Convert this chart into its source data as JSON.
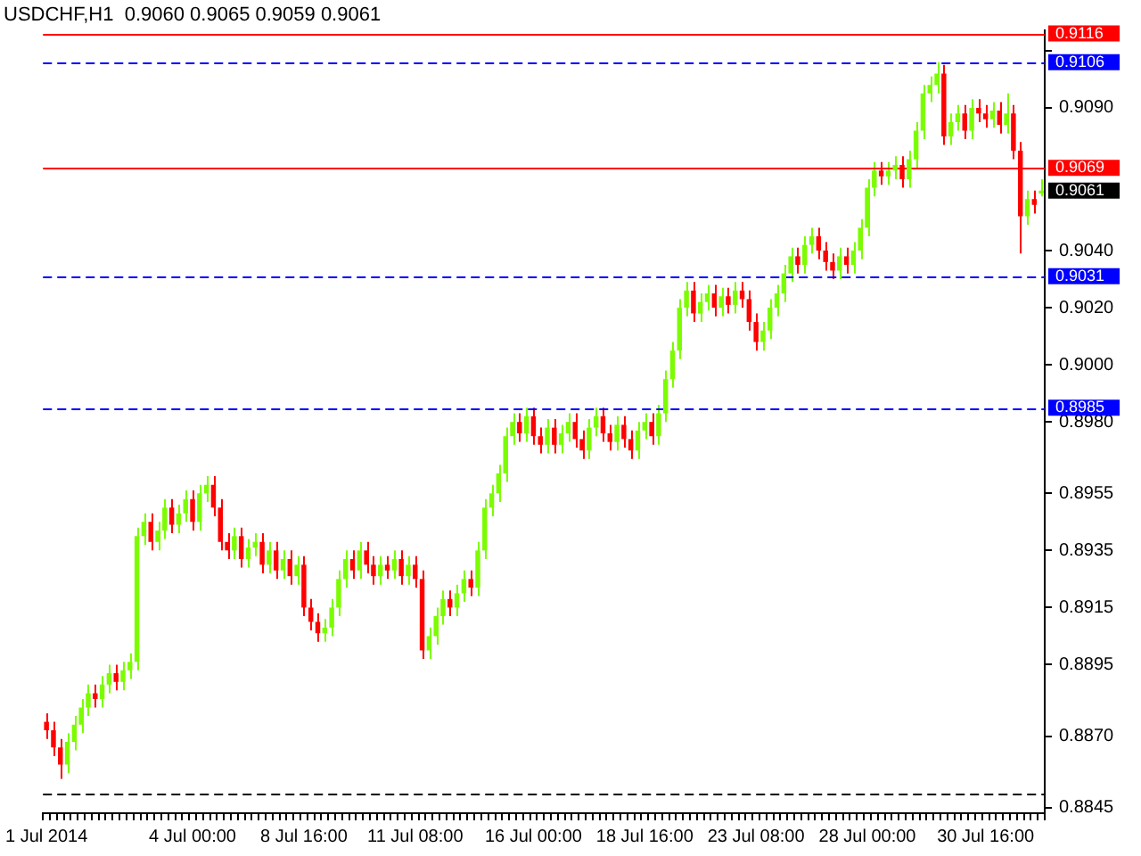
{
  "chart_data": {
    "type": "candlestick",
    "title": "USDCHF,H1  0.9060 0.9065 0.9059 0.9061",
    "categories": [
      "1 Jul 2014",
      null,
      null,
      null,
      null,
      null,
      null,
      null,
      null,
      null,
      null,
      null,
      null,
      null,
      null,
      null,
      null,
      null,
      null,
      null,
      null,
      "4 Jul 00:00",
      null,
      null,
      null,
      null,
      null,
      null,
      null,
      null,
      null,
      null,
      null,
      null,
      null,
      null,
      null,
      "8 Jul 16:00",
      null,
      null,
      null,
      null,
      null,
      null,
      null,
      null,
      null,
      null,
      null,
      null,
      null,
      null,
      null,
      "11 Jul 08:00",
      null,
      null,
      null,
      null,
      null,
      null,
      null,
      null,
      null,
      null,
      null,
      null,
      null,
      null,
      null,
      null,
      "16 Jul 00:00",
      null,
      null,
      null,
      null,
      null,
      null,
      null,
      null,
      null,
      null,
      null,
      null,
      null,
      null,
      null,
      "18 Jul 16:00",
      null,
      null,
      null,
      null,
      null,
      null,
      null,
      null,
      null,
      null,
      null,
      null,
      null,
      null,
      null,
      "23 Jul 08:00",
      null,
      null,
      null,
      null,
      null,
      null,
      null,
      null,
      null,
      null,
      null,
      null,
      null,
      null,
      null,
      "28 Jul 00:00",
      null,
      null,
      null,
      null,
      null,
      null,
      null,
      null,
      null,
      null,
      null,
      null,
      null,
      null,
      null,
      null,
      "30 Jul 16:00",
      null,
      null,
      null,
      null,
      null,
      null,
      null,
      null
    ],
    "ohlc": [
      [
        0.8875,
        0.8878,
        0.8869,
        0.8872
      ],
      [
        0.8872,
        0.8875,
        0.8863,
        0.8866
      ],
      [
        0.8866,
        0.8869,
        0.8855,
        0.886
      ],
      [
        0.886,
        0.8871,
        0.8857,
        0.8868
      ],
      [
        0.8868,
        0.8877,
        0.8865,
        0.8874
      ],
      [
        0.8874,
        0.8883,
        0.8871,
        0.888
      ],
      [
        0.888,
        0.8888,
        0.8877,
        0.8885
      ],
      [
        0.8885,
        0.8888,
        0.888,
        0.8883
      ],
      [
        0.8883,
        0.8891,
        0.888,
        0.8888
      ],
      [
        0.8888,
        0.8895,
        0.8885,
        0.8892
      ],
      [
        0.8892,
        0.8895,
        0.8886,
        0.8889
      ],
      [
        0.8889,
        0.8896,
        0.8886,
        0.8893
      ],
      [
        0.8893,
        0.8899,
        0.889,
        0.8896
      ],
      [
        0.8896,
        0.8943,
        0.8893,
        0.894
      ],
      [
        0.894,
        0.8948,
        0.8937,
        0.8945
      ],
      [
        0.8945,
        0.8948,
        0.8935,
        0.8938
      ],
      [
        0.8938,
        0.8945,
        0.8935,
        0.8942
      ],
      [
        0.8942,
        0.8953,
        0.8939,
        0.895
      ],
      [
        0.895,
        0.8953,
        0.8941,
        0.8944
      ],
      [
        0.8944,
        0.8951,
        0.8941,
        0.8948
      ],
      [
        0.8948,
        0.8956,
        0.8945,
        0.8953
      ],
      [
        0.8953,
        0.8956,
        0.8942,
        0.8945
      ],
      [
        0.8945,
        0.8958,
        0.8942,
        0.8955
      ],
      [
        0.8955,
        0.8961,
        0.8952,
        0.8958
      ],
      [
        0.8958,
        0.8961,
        0.8947,
        0.895
      ],
      [
        0.895,
        0.8953,
        0.8935,
        0.8938
      ],
      [
        0.8938,
        0.8941,
        0.8932,
        0.8935
      ],
      [
        0.8935,
        0.8943,
        0.8932,
        0.894
      ],
      [
        0.894,
        0.8943,
        0.8929,
        0.8932
      ],
      [
        0.8932,
        0.8939,
        0.8929,
        0.8936
      ],
      [
        0.8936,
        0.8941,
        0.8933,
        0.8938
      ],
      [
        0.8938,
        0.8941,
        0.8927,
        0.893
      ],
      [
        0.893,
        0.8938,
        0.8927,
        0.8935
      ],
      [
        0.8935,
        0.8938,
        0.8925,
        0.8928
      ],
      [
        0.8928,
        0.8935,
        0.8925,
        0.8932
      ],
      [
        0.8932,
        0.8935,
        0.8923,
        0.8926
      ],
      [
        0.8926,
        0.8933,
        0.8923,
        0.893
      ],
      [
        0.893,
        0.8933,
        0.8912,
        0.8915
      ],
      [
        0.8915,
        0.8918,
        0.8907,
        0.891
      ],
      [
        0.891,
        0.8913,
        0.8903,
        0.8906
      ],
      [
        0.8906,
        0.8911,
        0.8903,
        0.8908
      ],
      [
        0.8908,
        0.8918,
        0.8905,
        0.8915
      ],
      [
        0.8915,
        0.8928,
        0.8912,
        0.8925
      ],
      [
        0.8925,
        0.8935,
        0.8922,
        0.8932
      ],
      [
        0.8932,
        0.8935,
        0.8925,
        0.8928
      ],
      [
        0.8928,
        0.8938,
        0.8925,
        0.8935
      ],
      [
        0.8935,
        0.8938,
        0.8927,
        0.893
      ],
      [
        0.893,
        0.8933,
        0.8923,
        0.8926
      ],
      [
        0.8926,
        0.8933,
        0.8923,
        0.893
      ],
      [
        0.893,
        0.8933,
        0.8925,
        0.8928
      ],
      [
        0.8928,
        0.8935,
        0.8925,
        0.8932
      ],
      [
        0.8932,
        0.8935,
        0.8923,
        0.8926
      ],
      [
        0.8926,
        0.8933,
        0.8923,
        0.893
      ],
      [
        0.893,
        0.8933,
        0.8922,
        0.8925
      ],
      [
        0.8925,
        0.8928,
        0.8897,
        0.89
      ],
      [
        0.89,
        0.8908,
        0.8897,
        0.8905
      ],
      [
        0.8905,
        0.8915,
        0.8902,
        0.8912
      ],
      [
        0.8912,
        0.8921,
        0.8909,
        0.8918
      ],
      [
        0.8918,
        0.8921,
        0.8912,
        0.8915
      ],
      [
        0.8915,
        0.8923,
        0.8912,
        0.892
      ],
      [
        0.892,
        0.8928,
        0.8917,
        0.8925
      ],
      [
        0.8925,
        0.8928,
        0.8919,
        0.8922
      ],
      [
        0.8922,
        0.8938,
        0.8919,
        0.8935
      ],
      [
        0.8935,
        0.8953,
        0.8932,
        0.895
      ],
      [
        0.895,
        0.8958,
        0.8947,
        0.8955
      ],
      [
        0.8955,
        0.8965,
        0.8952,
        0.8962
      ],
      [
        0.8962,
        0.8978,
        0.8959,
        0.8975
      ],
      [
        0.8975,
        0.8983,
        0.8972,
        0.898
      ],
      [
        0.898,
        0.8983,
        0.8973,
        0.8976
      ],
      [
        0.8976,
        0.8985,
        0.8973,
        0.8982
      ],
      [
        0.8982,
        0.8985,
        0.8972,
        0.8975
      ],
      [
        0.8975,
        0.8978,
        0.8969,
        0.8972
      ],
      [
        0.8972,
        0.8981,
        0.8969,
        0.8978
      ],
      [
        0.8978,
        0.8981,
        0.8969,
        0.8972
      ],
      [
        0.8972,
        0.8979,
        0.8969,
        0.8976
      ],
      [
        0.8976,
        0.8983,
        0.8973,
        0.898
      ],
      [
        0.898,
        0.8983,
        0.8971,
        0.8974
      ],
      [
        0.8974,
        0.8977,
        0.8967,
        0.897
      ],
      [
        0.897,
        0.8981,
        0.8967,
        0.8978
      ],
      [
        0.8978,
        0.8985,
        0.8975,
        0.8982
      ],
      [
        0.8982,
        0.8985,
        0.8973,
        0.8976
      ],
      [
        0.8976,
        0.8979,
        0.897,
        0.8973
      ],
      [
        0.8973,
        0.8982,
        0.897,
        0.8979
      ],
      [
        0.8979,
        0.8982,
        0.8971,
        0.8974
      ],
      [
        0.8974,
        0.8977,
        0.8967,
        0.897
      ],
      [
        0.897,
        0.898,
        0.8967,
        0.8977
      ],
      [
        0.8977,
        0.8983,
        0.8974,
        0.898
      ],
      [
        0.898,
        0.8983,
        0.8972,
        0.8975
      ],
      [
        0.8975,
        0.8986,
        0.8972,
        0.8983
      ],
      [
        0.8983,
        0.8998,
        0.898,
        0.8995
      ],
      [
        0.8995,
        0.9008,
        0.8992,
        0.9005
      ],
      [
        0.9005,
        0.9023,
        0.9002,
        0.902
      ],
      [
        0.902,
        0.9029,
        0.9017,
        0.9026
      ],
      [
        0.9026,
        0.9029,
        0.9015,
        0.9018
      ],
      [
        0.9018,
        0.9025,
        0.9015,
        0.9022
      ],
      [
        0.9022,
        0.9028,
        0.9019,
        0.9025
      ],
      [
        0.9025,
        0.9028,
        0.9017,
        0.902
      ],
      [
        0.902,
        0.9027,
        0.9017,
        0.9024
      ],
      [
        0.9024,
        0.9027,
        0.9018,
        0.9021
      ],
      [
        0.9021,
        0.9029,
        0.9018,
        0.9026
      ],
      [
        0.9026,
        0.9029,
        0.902,
        0.9023
      ],
      [
        0.9023,
        0.9026,
        0.9012,
        0.9015
      ],
      [
        0.9015,
        0.9018,
        0.9005,
        0.9008
      ],
      [
        0.9008,
        0.9015,
        0.9005,
        0.9012
      ],
      [
        0.9012,
        0.9023,
        0.9009,
        0.902
      ],
      [
        0.902,
        0.9028,
        0.9017,
        0.9025
      ],
      [
        0.9025,
        0.9035,
        0.9022,
        0.9032
      ],
      [
        0.9032,
        0.9041,
        0.9029,
        0.9038
      ],
      [
        0.9038,
        0.9041,
        0.9032,
        0.9035
      ],
      [
        0.9035,
        0.9045,
        0.9032,
        0.9042
      ],
      [
        0.9042,
        0.9048,
        0.9039,
        0.9045
      ],
      [
        0.9045,
        0.9048,
        0.9037,
        0.904
      ],
      [
        0.904,
        0.9043,
        0.9033,
        0.9036
      ],
      [
        0.9036,
        0.9039,
        0.903,
        0.9033
      ],
      [
        0.9033,
        0.9041,
        0.903,
        0.9038
      ],
      [
        0.9038,
        0.9041,
        0.9032,
        0.9035
      ],
      [
        0.9035,
        0.9043,
        0.9032,
        0.904
      ],
      [
        0.904,
        0.9051,
        0.9037,
        0.9048
      ],
      [
        0.9048,
        0.9065,
        0.9045,
        0.9062
      ],
      [
        0.9062,
        0.9071,
        0.9059,
        0.9068
      ],
      [
        0.9068,
        0.9071,
        0.9063,
        0.9066
      ],
      [
        0.9066,
        0.9071,
        0.9063,
        0.9068
      ],
      [
        0.9068,
        0.9073,
        0.9065,
        0.907
      ],
      [
        0.907,
        0.9073,
        0.9062,
        0.9065
      ],
      [
        0.9065,
        0.9075,
        0.9062,
        0.9072
      ],
      [
        0.9072,
        0.9085,
        0.9069,
        0.9082
      ],
      [
        0.9082,
        0.9098,
        0.9079,
        0.9095
      ],
      [
        0.9095,
        0.9101,
        0.9092,
        0.9098
      ],
      [
        0.9098,
        0.9106,
        0.9095,
        0.9102
      ],
      [
        0.9102,
        0.9105,
        0.9077,
        0.908
      ],
      [
        0.908,
        0.9088,
        0.9077,
        0.9085
      ],
      [
        0.9085,
        0.9091,
        0.9082,
        0.9088
      ],
      [
        0.9088,
        0.9091,
        0.9079,
        0.9082
      ],
      [
        0.9082,
        0.9093,
        0.9079,
        0.909
      ],
      [
        0.909,
        0.9093,
        0.9085,
        0.9088
      ],
      [
        0.9088,
        0.9091,
        0.9083,
        0.9086
      ],
      [
        0.9086,
        0.9092,
        0.9083,
        0.9089
      ],
      [
        0.9089,
        0.9092,
        0.9081,
        0.9084
      ],
      [
        0.9084,
        0.9095,
        0.9081,
        0.9088
      ],
      [
        0.9088,
        0.9091,
        0.9072,
        0.9075
      ],
      [
        0.9075,
        0.9078,
        0.9039,
        0.9052
      ],
      [
        0.9052,
        0.9061,
        0.9049,
        0.9058
      ],
      [
        0.9058,
        0.9061,
        0.9053,
        0.9056
      ],
      [
        0.906,
        0.9065,
        0.9059,
        0.9061
      ]
    ],
    "ylim": [
      0.8843,
      0.9117
    ],
    "yticks": [
      {
        "value": 0.911,
        "label": null
      },
      {
        "value": 0.909,
        "label": "0.9090"
      },
      {
        "value": 0.904,
        "label": "0.9040"
      },
      {
        "value": 0.902,
        "label": "0.9020"
      },
      {
        "value": 0.9,
        "label": "0.9000"
      },
      {
        "value": 0.898,
        "label": "0.8980"
      },
      0.8955,
      0.8935,
      0.8915,
      0.8895,
      {
        "value": 0.887,
        "label": "0.8870"
      },
      0.8845
    ],
    "grid": false,
    "legend": false,
    "ref_lines": [
      {
        "axis": "y",
        "value": 0.9116,
        "label": "0.9116",
        "color": "#ff0000",
        "line_style": "solid"
      },
      {
        "axis": "y",
        "value": 0.9106,
        "label": "0.9106",
        "color": "#0000ff",
        "line_style": "dashed"
      },
      {
        "axis": "y",
        "value": 0.9069,
        "label": "0.9069",
        "color": "#ff0000",
        "line_style": "solid"
      },
      {
        "axis": "y",
        "value": 0.9031,
        "label": "0.9031",
        "color": "#0000ff",
        "line_style": "dashed"
      },
      {
        "axis": "y",
        "value": 0.8985,
        "label": "0.8985",
        "color": "#0000ff",
        "line_style": "dashed"
      },
      {
        "axis": "y",
        "value": 0.885,
        "label": null,
        "color": "#000000",
        "line_style": "dashed"
      }
    ],
    "annotations": [
      "0.9061"
    ]
  }
}
